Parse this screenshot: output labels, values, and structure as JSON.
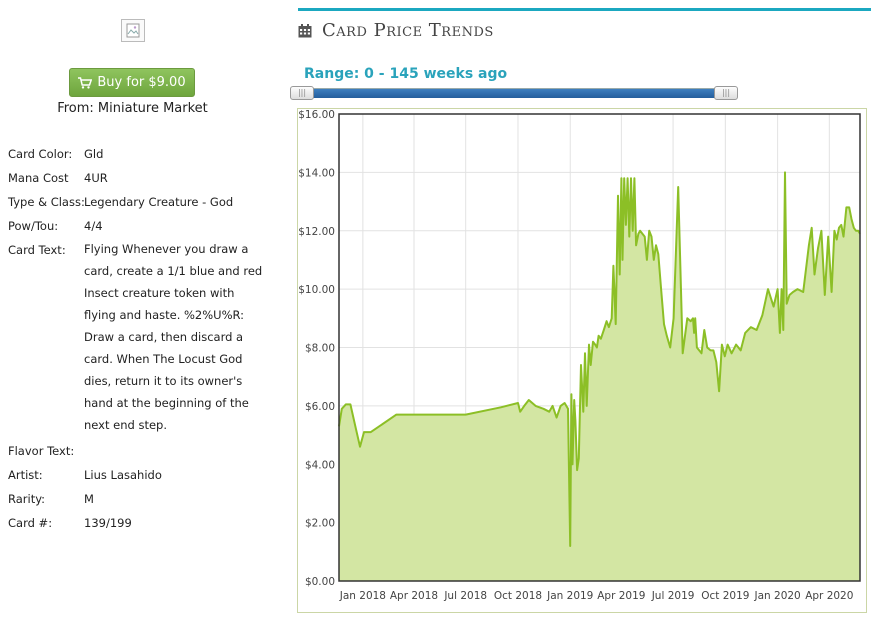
{
  "card_image": {
    "alt": "card image",
    "icon": "broken-image-icon"
  },
  "buy": {
    "label": "Buy for $9.00",
    "icon": "cart-icon",
    "from": "From: Miniature Market",
    "color": "#7cb54a"
  },
  "info": {
    "rows": [
      {
        "label": "Card Color:",
        "value": "Gld"
      },
      {
        "label": "Mana Cost",
        "value": "4UR"
      },
      {
        "label": "Type & Class:",
        "value": "Legendary Creature - God"
      },
      {
        "label": "Pow/Tou:",
        "value": "4/4"
      },
      {
        "label": "Card Text:",
        "value": ""
      },
      {
        "label": "Flavor Text:",
        "value": ""
      },
      {
        "label": "Artist:",
        "value": "Lius Lasahido"
      },
      {
        "label": "Rarity:",
        "value": "M"
      },
      {
        "label": "Card #:",
        "value": "139/199"
      }
    ],
    "card_text_lines": [
      "Flying Whenever you draw a",
      "card, create a 1/1 blue and red",
      "Insect creature token with",
      "flying and haste. %2%U%R:",
      "Draw a card, then discard a",
      "card. When The Locust God",
      "dies, return it to its owner's",
      "hand at the beginning of the",
      "next end step."
    ]
  },
  "trends": {
    "title": "Card Price Trends",
    "icon": "calendar-icon",
    "range_label": "Range: 0 - 145 weeks ago",
    "slider": {
      "min_weeks": 0,
      "max_weeks": 145,
      "handle_grip": "|||"
    },
    "accent_color": "#1ba8c0"
  },
  "chart_data": {
    "type": "area",
    "title": "",
    "xlabel": "",
    "ylabel": "",
    "ylim": [
      0,
      16
    ],
    "y_ticks": [
      "$0.00",
      "$2.00",
      "$4.00",
      "$6.00",
      "$8.00",
      "$10.00",
      "$12.00",
      "$14.00",
      "$16.00"
    ],
    "x_ticks": [
      "Jan 2018",
      "Apr 2018",
      "Jul 2018",
      "Oct 2018",
      "Jan 2019",
      "Apr 2019",
      "Jul 2019",
      "Oct 2019",
      "Jan 2020",
      "Apr 2020"
    ],
    "x_range": [
      "2017-11-20",
      "2020-05-25"
    ],
    "grid": true,
    "line_color": "#8cbf26",
    "fill_color": "#d3e6a3",
    "series": [
      {
        "x": [
          "2017-11-20",
          "2017-11-25",
          "2017-12-02",
          "2017-12-10",
          "2017-12-20",
          "2017-12-27",
          "2018-01-03",
          "2018-01-15",
          "2018-03-01",
          "2018-06-01",
          "2018-07-01",
          "2018-09-01",
          "2018-10-01",
          "2018-10-05",
          "2018-10-12",
          "2018-10-20",
          "2018-11-01",
          "2018-11-15",
          "2018-11-25",
          "2018-12-01",
          "2018-12-08",
          "2018-12-15",
          "2018-12-22",
          "2018-12-28",
          "2019-01-01",
          "2019-01-03",
          "2019-01-05",
          "2019-01-08",
          "2019-01-10",
          "2019-01-13",
          "2019-01-16",
          "2019-01-20",
          "2019-01-24",
          "2019-01-27",
          "2019-01-30",
          "2019-02-03",
          "2019-02-06",
          "2019-02-10",
          "2019-02-14",
          "2019-02-17",
          "2019-02-20",
          "2019-02-24",
          "2019-03-01",
          "2019-03-06",
          "2019-03-10",
          "2019-03-15",
          "2019-03-18",
          "2019-03-22",
          "2019-03-26",
          "2019-03-29",
          "2019-04-01",
          "2019-04-03",
          "2019-04-06",
          "2019-04-09",
          "2019-04-12",
          "2019-04-15",
          "2019-04-18",
          "2019-04-21",
          "2019-04-24",
          "2019-04-27",
          "2019-05-01",
          "2019-05-04",
          "2019-05-08",
          "2019-05-12",
          "2019-05-16",
          "2019-05-20",
          "2019-05-24",
          "2019-05-28",
          "2019-06-01",
          "2019-06-05",
          "2019-06-10",
          "2019-06-15",
          "2019-06-20",
          "2019-06-26",
          "2019-07-02",
          "2019-07-10",
          "2019-07-18",
          "2019-07-26",
          "2019-08-01",
          "2019-08-05",
          "2019-08-07",
          "2019-08-09",
          "2019-08-12",
          "2019-08-20",
          "2019-08-25",
          "2019-08-30",
          "2019-09-05",
          "2019-09-10",
          "2019-09-15",
          "2019-09-20",
          "2019-09-25",
          "2019-09-30",
          "2019-10-05",
          "2019-10-12",
          "2019-10-20",
          "2019-10-28",
          "2019-11-05",
          "2019-11-15",
          "2019-11-25",
          "2019-12-05",
          "2019-12-15",
          "2019-12-25",
          "2020-01-01",
          "2020-01-05",
          "2020-01-08",
          "2020-01-11",
          "2020-01-14",
          "2020-01-17",
          "2020-01-22",
          "2020-01-28",
          "2020-02-05",
          "2020-02-15",
          "2020-02-25",
          "2020-03-01",
          "2020-03-06",
          "2020-03-12",
          "2020-03-18",
          "2020-03-24",
          "2020-03-30",
          "2020-04-05",
          "2020-04-10",
          "2020-04-14",
          "2020-04-18",
          "2020-04-22",
          "2020-04-26",
          "2020-05-01",
          "2020-05-06",
          "2020-05-10",
          "2020-05-14",
          "2020-05-18",
          "2020-05-22",
          "2020-05-25"
        ],
        "values": [
          5.3,
          5.9,
          6.05,
          6.05,
          5.2,
          4.6,
          5.1,
          5.1,
          5.7,
          5.7,
          5.7,
          5.95,
          6.1,
          5.8,
          6.0,
          6.2,
          6.0,
          5.9,
          5.8,
          6.0,
          5.6,
          6.0,
          6.1,
          5.9,
          1.2,
          6.4,
          4.0,
          6.2,
          5.5,
          3.8,
          4.2,
          7.4,
          5.8,
          7.8,
          6.0,
          8.1,
          7.4,
          8.2,
          8.1,
          8.0,
          8.4,
          8.3,
          8.6,
          8.9,
          8.7,
          9.0,
          10.8,
          8.8,
          13.2,
          10.5,
          13.8,
          11.0,
          13.8,
          12.2,
          13.8,
          11.8,
          13.8,
          12.0,
          13.8,
          11.5,
          11.9,
          12.0,
          11.9,
          11.8,
          11.0,
          12.0,
          11.8,
          11.0,
          11.5,
          11.2,
          10.0,
          8.8,
          8.4,
          8.0,
          9.0,
          13.5,
          7.8,
          9.0,
          8.9,
          9.0,
          8.5,
          9.0,
          8.0,
          7.8,
          8.6,
          8.0,
          7.9,
          7.9,
          7.5,
          6.5,
          8.1,
          7.7,
          8.1,
          7.8,
          8.1,
          7.9,
          8.5,
          8.7,
          8.6,
          9.1,
          10.0,
          9.4,
          10.0,
          8.5,
          10.0,
          8.6,
          14.0,
          9.5,
          9.8,
          9.9,
          10.0,
          9.9,
          11.5,
          12.1,
          10.5,
          11.4,
          12.0,
          9.8,
          11.8,
          9.9,
          12.0,
          11.7,
          12.1,
          12.2,
          11.8,
          12.8,
          12.8,
          12.4,
          12.1,
          12.0,
          12.0,
          11.9
        ]
      }
    ]
  }
}
